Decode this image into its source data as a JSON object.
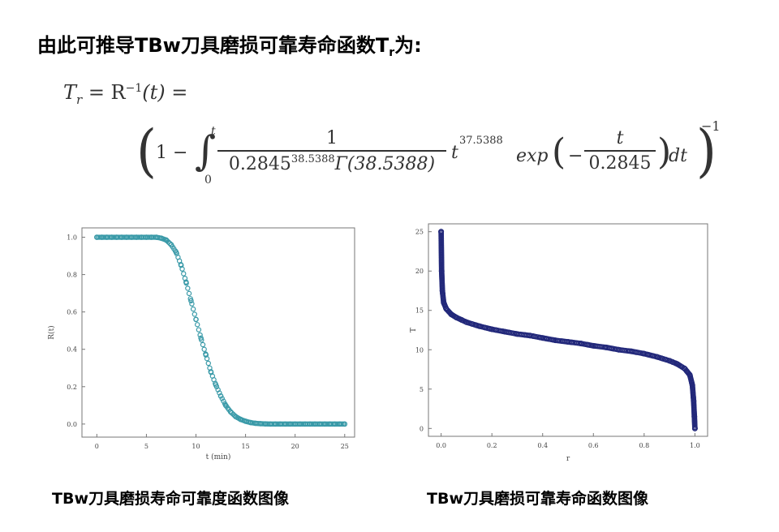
{
  "heading": {
    "text": "由此可推导TBw刀具磨损可靠寿命函数T",
    "sub": "r",
    "suffix": "为:"
  },
  "formula": {
    "lhs": "T",
    "lhs_sub": "r",
    "eq": " = R",
    "inv": "−1",
    "arg": "(t) =",
    "open": "(",
    "one_minus": "1 −",
    "int_upper": "t",
    "int_lower": "0",
    "num": "1",
    "den_base": "0.2845",
    "den_exp": "38.5388",
    "den_gamma": "Γ(38.5388)",
    "t_pow_base": "t",
    "t_pow_exp": "37.5388",
    "exp_word": "exp",
    "minus": "−",
    "inner_num": "t",
    "inner_den": "0.2845",
    "dt": "dt",
    "close": ")",
    "outer_exp": "−1"
  },
  "captions": {
    "left": "TBw刀具磨损寿命可靠度函数图像",
    "right": "TBw刀具磨损可靠寿命函数图像"
  },
  "chart_data": [
    {
      "type": "scatter",
      "xlabel": "t (min)",
      "ylabel": "R(t)",
      "xlim": [
        -1.5,
        26
      ],
      "ylim": [
        -0.07,
        1.05
      ],
      "xticks": [
        "0",
        "5",
        "10",
        "15",
        "20",
        "25"
      ],
      "yticks": [
        "0.0",
        "0.2",
        "0.4",
        "0.6",
        "0.8",
        "1.0"
      ],
      "marker_color": "#3a9aa8",
      "x": [
        0,
        0.5,
        1,
        1.5,
        2,
        2.5,
        3,
        3.5,
        4,
        4.5,
        5,
        5.5,
        6,
        6.5,
        7,
        7.5,
        8,
        8.5,
        9,
        9.5,
        10,
        10.5,
        11,
        11.5,
        12,
        12.5,
        13,
        13.5,
        14,
        14.5,
        15,
        15.5,
        16,
        16.5,
        17,
        17.5,
        18,
        18.5,
        19,
        19.5,
        20,
        20.5,
        21,
        21.5,
        22,
        22.5,
        23,
        23.5,
        24,
        24.5,
        25
      ],
      "y": [
        1,
        1,
        1,
        1,
        1,
        1,
        1,
        1,
        1,
        1,
        1,
        1,
        1,
        0.995,
        0.985,
        0.96,
        0.92,
        0.85,
        0.76,
        0.66,
        0.56,
        0.46,
        0.37,
        0.28,
        0.21,
        0.15,
        0.1,
        0.065,
        0.04,
        0.025,
        0.015,
        0.008,
        0.004,
        0.002,
        0.001,
        0,
        0,
        0,
        0,
        0,
        0,
        0,
        0,
        0,
        0,
        0,
        0,
        0,
        0,
        0,
        0
      ]
    },
    {
      "type": "scatter",
      "xlabel": "r",
      "ylabel": "T",
      "xlim": [
        -0.05,
        1.05
      ],
      "ylim": [
        -1,
        26
      ],
      "xticks": [
        "0.0",
        "0.2",
        "0.4",
        "0.6",
        "0.8",
        "1.0"
      ],
      "yticks": [
        "0",
        "5",
        "10",
        "15",
        "20",
        "25"
      ],
      "marker_color": "#22287a",
      "x": [
        0,
        0.002,
        0.005,
        0.01,
        0.02,
        0.04,
        0.06,
        0.08,
        0.1,
        0.15,
        0.2,
        0.25,
        0.3,
        0.35,
        0.4,
        0.45,
        0.5,
        0.55,
        0.6,
        0.65,
        0.7,
        0.75,
        0.8,
        0.85,
        0.9,
        0.93,
        0.96,
        0.98,
        0.99,
        0.995,
        0.998,
        1
      ],
      "y": [
        25,
        20,
        17.5,
        16,
        15.2,
        14.5,
        14.1,
        13.8,
        13.5,
        13,
        12.6,
        12.3,
        12,
        11.8,
        11.5,
        11.2,
        11,
        10.8,
        10.5,
        10.3,
        10,
        9.8,
        9.5,
        9.1,
        8.6,
        8.2,
        7.6,
        6.8,
        5.5,
        3.5,
        1.5,
        0
      ]
    }
  ]
}
